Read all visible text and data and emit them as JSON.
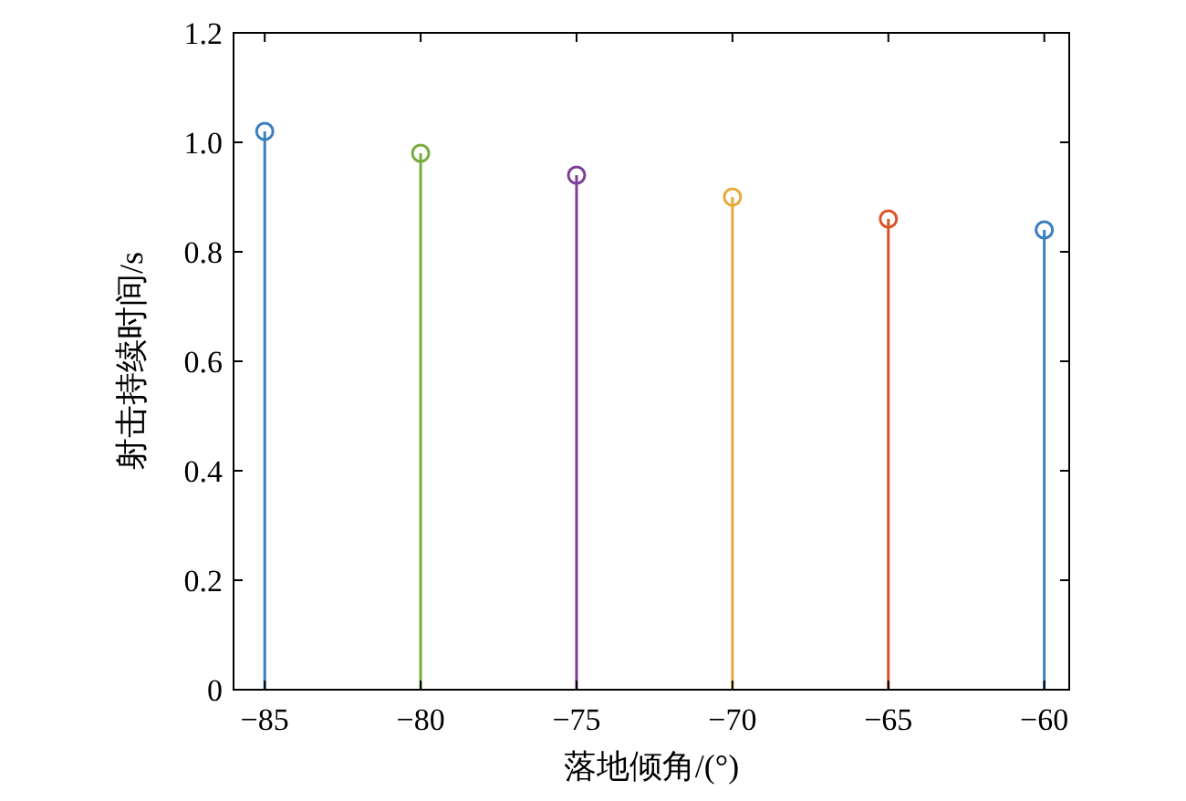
{
  "chart_data": {
    "type": "lollipop",
    "xlabel": "落地倾角/(°)",
    "ylabel": "射击持续时间/s",
    "x": [
      -85,
      -80,
      -75,
      -70,
      -65,
      -60
    ],
    "values": [
      1.02,
      0.98,
      0.94,
      0.9,
      0.86,
      0.84
    ],
    "colors": [
      "#3b7fc0",
      "#77ab3d",
      "#7f3f98",
      "#e9a93a",
      "#d95429",
      "#3b7fc0"
    ],
    "marker": "circle",
    "xlim": [
      -86,
      -59.2
    ],
    "xticks": [
      {
        "value": -85,
        "label": "−85"
      },
      {
        "value": -80,
        "label": "−80"
      },
      {
        "value": -75,
        "label": "−75"
      },
      {
        "value": -70,
        "label": "−70"
      },
      {
        "value": -65,
        "label": "−65"
      },
      {
        "value": -60,
        "label": "−60"
      }
    ],
    "ylim": [
      0,
      1.2
    ],
    "yticks": [
      0,
      0.2,
      0.4,
      0.6,
      {
        "value": 0.8,
        "label": "0.8"
      },
      {
        "value": 1.0,
        "label": "1.0"
      },
      {
        "value": 1.2,
        "label": "1.2"
      }
    ]
  }
}
